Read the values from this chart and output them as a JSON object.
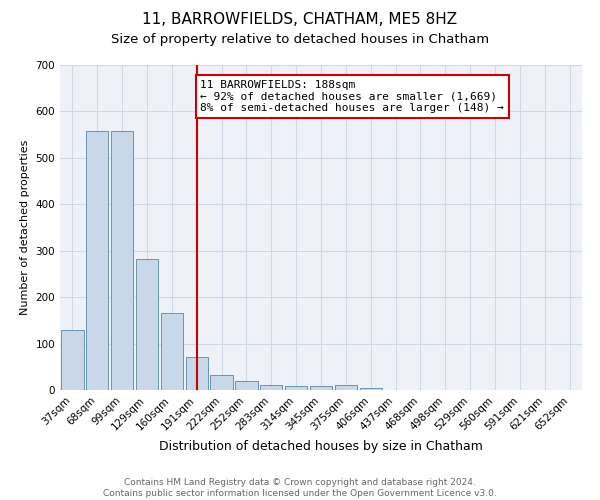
{
  "title": "11, BARROWFIELDS, CHATHAM, ME5 8HZ",
  "subtitle": "Size of property relative to detached houses in Chatham",
  "xlabel": "Distribution of detached houses by size in Chatham",
  "ylabel": "Number of detached properties",
  "footer_line1": "Contains HM Land Registry data © Crown copyright and database right 2024.",
  "footer_line2": "Contains public sector information licensed under the Open Government Licence v3.0.",
  "bar_labels": [
    "37sqm",
    "68sqm",
    "99sqm",
    "129sqm",
    "160sqm",
    "191sqm",
    "222sqm",
    "252sqm",
    "283sqm",
    "314sqm",
    "345sqm",
    "375sqm",
    "406sqm",
    "437sqm",
    "468sqm",
    "498sqm",
    "529sqm",
    "560sqm",
    "591sqm",
    "621sqm",
    "652sqm"
  ],
  "bar_values": [
    130,
    557,
    557,
    282,
    165,
    72,
    33,
    20,
    10,
    8,
    8,
    10,
    5,
    0,
    0,
    0,
    0,
    0,
    0,
    0,
    0
  ],
  "bar_color": "#c8d8e8",
  "bar_edge_color": "#5588aa",
  "highlight_bar_index": 5,
  "highlight_line_color": "#cc0000",
  "annotation_line1": "11 BARROWFIELDS: 188sqm",
  "annotation_line2": "← 92% of detached houses are smaller (1,669)",
  "annotation_line3": "8% of semi-detached houses are larger (148) →",
  "annotation_box_color": "#cc0000",
  "ylim": [
    0,
    700
  ],
  "yticks": [
    0,
    100,
    200,
    300,
    400,
    500,
    600,
    700
  ],
  "grid_color": "#d0d8e8",
  "background_color": "#eef2f8",
  "title_fontsize": 11,
  "subtitle_fontsize": 9.5,
  "xlabel_fontsize": 9,
  "ylabel_fontsize": 8,
  "tick_fontsize": 7.5,
  "annotation_fontsize": 8,
  "footer_fontsize": 6.5
}
